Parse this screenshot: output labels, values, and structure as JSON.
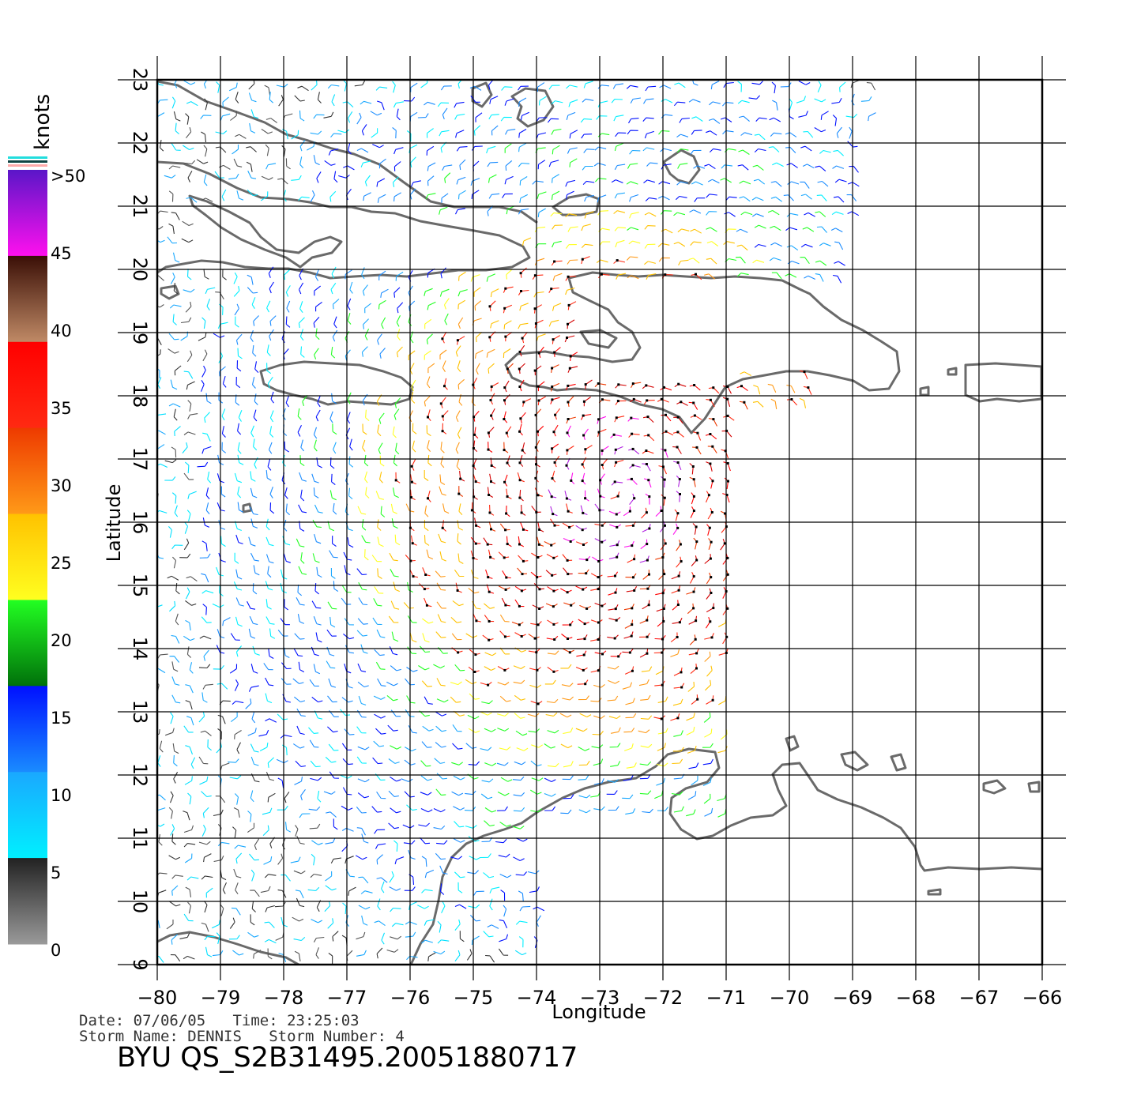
{
  "colorbar": {
    "units": "knots",
    "labels": [
      ">50",
      "45",
      "40",
      "35",
      "30",
      "25",
      "20",
      "15",
      "10",
      "5",
      "0"
    ],
    "stops": [
      {
        "from": 50,
        "to": 40,
        "top": "#5a16c8",
        "bottom": "#ff10ee"
      },
      {
        "from": 40,
        "to": 35,
        "top": "#3a0f06",
        "bottom": "#c08a66"
      },
      {
        "from": 35,
        "to": 30,
        "top": "#ff0000",
        "bottom": "#ff2a12"
      },
      {
        "from": 30,
        "to": 25,
        "top": "#ee3a00",
        "bottom": "#ff9a18"
      },
      {
        "from": 25,
        "to": 20,
        "top": "#ffc200",
        "bottom": "#ffff20"
      },
      {
        "from": 20,
        "to": 15,
        "top": "#22ff22",
        "bottom": "#00700a"
      },
      {
        "from": 15,
        "to": 10,
        "top": "#0010ff",
        "bottom": "#1a8cff"
      },
      {
        "from": 10,
        "to": 5,
        "top": "#1aa8ff",
        "bottom": "#00f0ff"
      },
      {
        "from": 5,
        "to": 0,
        "top": "#222222",
        "bottom": "#9a9a9a"
      }
    ]
  },
  "map": {
    "lon_range": [
      -80,
      -66
    ],
    "lat_range": [
      9,
      23
    ],
    "xlabel": "Longitude",
    "ylabel": "Latitude",
    "lon_ticks": [
      "−80",
      "−79",
      "−78",
      "−77",
      "−76",
      "−75",
      "−74",
      "−73",
      "−72",
      "−71",
      "−70",
      "−69",
      "−68",
      "−67",
      "−66"
    ],
    "lat_ticks": [
      "9",
      "10",
      "11",
      "12",
      "13",
      "14",
      "15",
      "16",
      "17",
      "18",
      "19",
      "20",
      "21",
      "22",
      "23"
    ],
    "grid": true,
    "coastline_color": "#6a6a6a",
    "land_labels": []
  },
  "footer": {
    "date_line": "Date: 07/06/05   Time: 23:25:03",
    "storm_line": "Storm Name: DENNIS   Storm Number: 4",
    "product": "BYU QS_S2B31495.20051880717"
  }
}
